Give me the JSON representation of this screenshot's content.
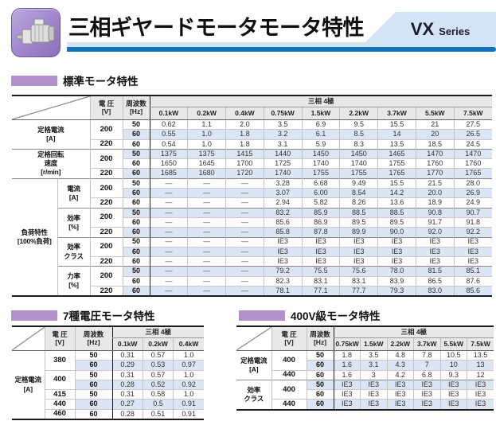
{
  "header": {
    "title": "三相ギヤードモータモータ特性",
    "series_main": "VX",
    "series_sub": "Series",
    "accent_blue": "#1173bd",
    "accent_light_blue": "#d3e5f4",
    "accent_purple": "#b191c9",
    "icon": "gear-motor-icon"
  },
  "sections": {
    "standard": "標準モータ特性",
    "seven_voltage": "7種電圧モータ特性",
    "v400": "400V級モータ特性"
  },
  "tables": {
    "standard": {
      "voltage_header": [
        "電 圧",
        "[V]"
      ],
      "freq_header": [
        "周波数",
        "[Hz]"
      ],
      "phase_header": "三相 4極",
      "columns": [
        "0.1kW",
        "0.2kW",
        "0.4kW",
        "0.75kW",
        "1.5kW",
        "2.2kW",
        "3.7kW",
        "5.5kW",
        "7.5kW"
      ],
      "groups": [
        {
          "label": [
            "定格電流",
            "[A]"
          ],
          "subgroups": [
            {
              "sublabel": null,
              "voltages": [
                {
                  "v": "200",
                  "rows": [
                    {
                      "hz": "50",
                      "values": [
                        "0.62",
                        "1.1",
                        "2.0",
                        "3.5",
                        "6.9",
                        "9.5",
                        "15.5",
                        "21",
                        "27.5"
                      ]
                    },
                    {
                      "hz": "60",
                      "values": [
                        "0.55",
                        "1.0",
                        "1.8",
                        "3.2",
                        "6.1",
                        "8.5",
                        "14",
                        "20",
                        "26.5"
                      ]
                    }
                  ]
                },
                {
                  "v": "220",
                  "rows": [
                    {
                      "hz": "60",
                      "values": [
                        "0.54",
                        "1.0",
                        "1.8",
                        "3.1",
                        "5.9",
                        "8.3",
                        "13.5",
                        "18.5",
                        "24.5"
                      ]
                    }
                  ]
                }
              ]
            }
          ]
        },
        {
          "label": [
            "定格回転",
            "速度",
            "[r/min]"
          ],
          "subgroups": [
            {
              "sublabel": null,
              "voltages": [
                {
                  "v": "200",
                  "rows": [
                    {
                      "hz": "50",
                      "values": [
                        "1375",
                        "1375",
                        "1415",
                        "1440",
                        "1450",
                        "1450",
                        "1465",
                        "1470",
                        "1470"
                      ]
                    },
                    {
                      "hz": "60",
                      "values": [
                        "1650",
                        "1645",
                        "1700",
                        "1725",
                        "1740",
                        "1740",
                        "1755",
                        "1760",
                        "1760"
                      ]
                    }
                  ]
                },
                {
                  "v": "220",
                  "rows": [
                    {
                      "hz": "60",
                      "values": [
                        "1685",
                        "1680",
                        "1720",
                        "1740",
                        "1755",
                        "1755",
                        "1765",
                        "1770",
                        "1765"
                      ]
                    }
                  ]
                }
              ]
            }
          ]
        },
        {
          "label": [
            "負荷特性",
            "[100%負荷]"
          ],
          "subgroups": [
            {
              "sublabel": [
                "電流",
                "[A]"
              ],
              "voltages": [
                {
                  "v": "200",
                  "rows": [
                    {
                      "hz": "50",
                      "values": [
                        "—",
                        "—",
                        "—",
                        "3.28",
                        "6.68",
                        "9.49",
                        "15.5",
                        "21.5",
                        "28.0"
                      ]
                    },
                    {
                      "hz": "60",
                      "values": [
                        "—",
                        "—",
                        "—",
                        "3.07",
                        "6.00",
                        "8.54",
                        "14.2",
                        "20.0",
                        "26.9"
                      ]
                    }
                  ]
                },
                {
                  "v": "220",
                  "rows": [
                    {
                      "hz": "60",
                      "values": [
                        "—",
                        "—",
                        "—",
                        "2.94",
                        "5.82",
                        "8.26",
                        "13.6",
                        "18.9",
                        "24.9"
                      ]
                    }
                  ]
                }
              ]
            },
            {
              "sublabel": [
                "効率",
                "[%]"
              ],
              "voltages": [
                {
                  "v": "200",
                  "rows": [
                    {
                      "hz": "50",
                      "values": [
                        "—",
                        "—",
                        "—",
                        "83.2",
                        "85.9",
                        "88.5",
                        "88.5",
                        "90.8",
                        "90.7"
                      ]
                    },
                    {
                      "hz": "60",
                      "values": [
                        "—",
                        "—",
                        "—",
                        "85.6",
                        "86.9",
                        "89.5",
                        "89.5",
                        "91.7",
                        "91.8"
                      ]
                    }
                  ]
                },
                {
                  "v": "220",
                  "rows": [
                    {
                      "hz": "60",
                      "values": [
                        "—",
                        "—",
                        "—",
                        "85.8",
                        "87.8",
                        "89.9",
                        "90.0",
                        "92.0",
                        "92.2"
                      ]
                    }
                  ]
                }
              ]
            },
            {
              "sublabel": [
                "効率",
                "クラス"
              ],
              "voltages": [
                {
                  "v": "200",
                  "rows": [
                    {
                      "hz": "50",
                      "values": [
                        "—",
                        "—",
                        "—",
                        "IE3",
                        "IE3",
                        "IE3",
                        "IE3",
                        "IE3",
                        "IE3"
                      ]
                    },
                    {
                      "hz": "60",
                      "values": [
                        "—",
                        "—",
                        "—",
                        "IE3",
                        "IE3",
                        "IE3",
                        "IE3",
                        "IE3",
                        "IE3"
                      ]
                    }
                  ]
                },
                {
                  "v": "220",
                  "rows": [
                    {
                      "hz": "60",
                      "values": [
                        "—",
                        "—",
                        "—",
                        "IE3",
                        "IE3",
                        "IE3",
                        "IE3",
                        "IE3",
                        "IE3"
                      ]
                    }
                  ]
                }
              ]
            },
            {
              "sublabel": [
                "力率",
                "[%]"
              ],
              "voltages": [
                {
                  "v": "200",
                  "rows": [
                    {
                      "hz": "50",
                      "values": [
                        "—",
                        "—",
                        "—",
                        "79.2",
                        "75.5",
                        "75.6",
                        "78.0",
                        "81.5",
                        "85.1"
                      ]
                    },
                    {
                      "hz": "60",
                      "values": [
                        "—",
                        "—",
                        "—",
                        "82.3",
                        "83.1",
                        "83.1",
                        "83.9",
                        "86.5",
                        "87.6"
                      ]
                    }
                  ]
                },
                {
                  "v": "220",
                  "rows": [
                    {
                      "hz": "60",
                      "values": [
                        "—",
                        "—",
                        "—",
                        "78.1",
                        "77.1",
                        "77.7",
                        "79.3",
                        "83.0",
                        "85.6"
                      ]
                    }
                  ]
                }
              ]
            }
          ]
        }
      ]
    },
    "seven_voltage": {
      "voltage_header": [
        "電 圧",
        "[V]"
      ],
      "freq_header": [
        "周波数",
        "[Hz]"
      ],
      "phase_header": "三相 4極",
      "columns": [
        "0.1kW",
        "0.2kW",
        "0.4kW"
      ],
      "groups": [
        {
          "label": [
            "定格電流",
            "[A]"
          ],
          "subgroups": [
            {
              "sublabel": null,
              "voltages": [
                {
                  "v": "380",
                  "rows": [
                    {
                      "hz": "50",
                      "values": [
                        "0.31",
                        "0.57",
                        "1.0"
                      ]
                    },
                    {
                      "hz": "60",
                      "values": [
                        "0.29",
                        "0.53",
                        "0.97"
                      ]
                    }
                  ]
                },
                {
                  "v": "400",
                  "rows": [
                    {
                      "hz": "50",
                      "values": [
                        "0.31",
                        "0.57",
                        "1.0"
                      ]
                    },
                    {
                      "hz": "60",
                      "values": [
                        "0.28",
                        "0.52",
                        "0.92"
                      ]
                    }
                  ]
                },
                {
                  "v": "415",
                  "rows": [
                    {
                      "hz": "50",
                      "values": [
                        "0.31",
                        "0.58",
                        "1.0"
                      ]
                    }
                  ]
                },
                {
                  "v": "440",
                  "rows": [
                    {
                      "hz": "60",
                      "values": [
                        "0.27",
                        "0.5",
                        "0.91"
                      ]
                    }
                  ]
                },
                {
                  "v": "460",
                  "rows": [
                    {
                      "hz": "60",
                      "values": [
                        "0.28",
                        "0.51",
                        "0.91"
                      ]
                    }
                  ]
                }
              ]
            }
          ]
        }
      ]
    },
    "v400": {
      "voltage_header": [
        "電 圧",
        "[V]"
      ],
      "freq_header": [
        "周波数",
        "[Hz]"
      ],
      "phase_header": "三相 4極",
      "columns": [
        "0.75kW",
        "1.5kW",
        "2.2kW",
        "3.7kW",
        "5.5kW",
        "7.5kW"
      ],
      "groups": [
        {
          "label": [
            "定格電流",
            "[A]"
          ],
          "subgroups": [
            {
              "sublabel": null,
              "voltages": [
                {
                  "v": "400",
                  "rows": [
                    {
                      "hz": "50",
                      "values": [
                        "1.8",
                        "3.5",
                        "4.8",
                        "7.8",
                        "10.5",
                        "13.5"
                      ]
                    },
                    {
                      "hz": "60",
                      "values": [
                        "1.6",
                        "3.1",
                        "4.3",
                        "7",
                        "10",
                        "13"
                      ]
                    }
                  ]
                },
                {
                  "v": "440",
                  "rows": [
                    {
                      "hz": "60",
                      "values": [
                        "1.6",
                        "3",
                        "4.2",
                        "6.8",
                        "9.3",
                        "12"
                      ]
                    }
                  ]
                }
              ]
            }
          ]
        },
        {
          "label": [
            "効率",
            "クラス"
          ],
          "subgroups": [
            {
              "sublabel": null,
              "voltages": [
                {
                  "v": "400",
                  "rows": [
                    {
                      "hz": "50",
                      "values": [
                        "IE3",
                        "IE3",
                        "IE3",
                        "IE3",
                        "IE3",
                        "IE3"
                      ]
                    },
                    {
                      "hz": "60",
                      "values": [
                        "IE3",
                        "IE3",
                        "IE3",
                        "IE3",
                        "IE3",
                        "IE3"
                      ]
                    }
                  ]
                },
                {
                  "v": "440",
                  "rows": [
                    {
                      "hz": "60",
                      "values": [
                        "IE3",
                        "IE3",
                        "IE3",
                        "IE3",
                        "IE3",
                        "IE3"
                      ]
                    }
                  ]
                }
              ]
            }
          ]
        }
      ]
    }
  }
}
